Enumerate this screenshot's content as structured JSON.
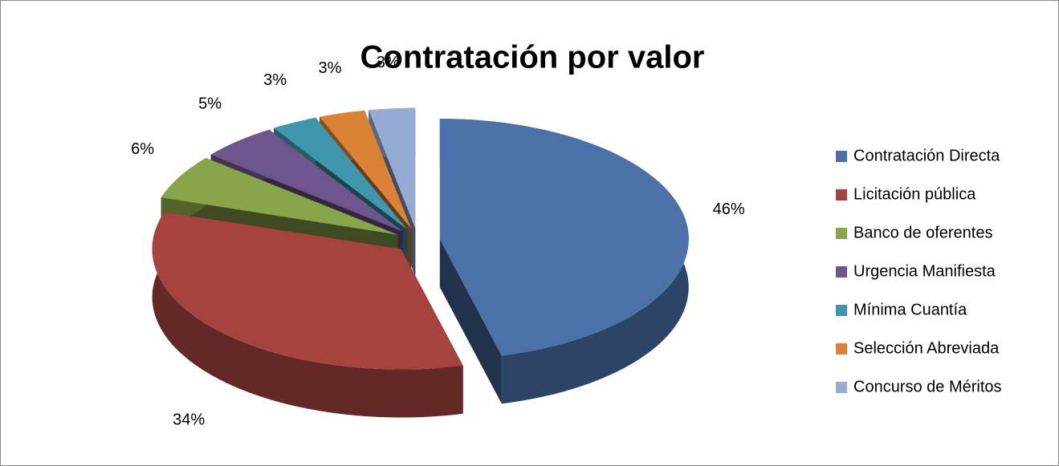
{
  "chart_data": {
    "type": "pie",
    "title": "Contratación por valor",
    "categories": [
      "Contratación Directa",
      "Licitación pública",
      "Banco de oferentes",
      "Urgencia Manifiesta",
      "Mínima Cuantía",
      "Selección Abreviada",
      "Concurso de Méritos"
    ],
    "values": [
      46,
      34,
      6,
      5,
      3,
      3,
      3
    ],
    "value_labels": [
      "46%",
      "34%",
      "6%",
      "5%",
      "3%",
      "3%",
      "3%"
    ],
    "colors": [
      "#4a72a8",
      "#a6433f",
      "#89a54a",
      "#6e558e",
      "#3f97ad",
      "#dc8236",
      "#95abd4"
    ],
    "legend": "right"
  }
}
